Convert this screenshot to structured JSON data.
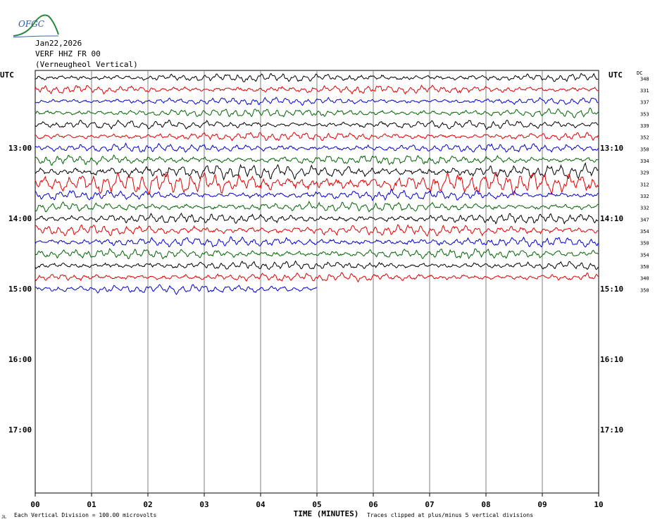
{
  "header": {
    "logo_text": "OFGC",
    "date": "Jan22,2026",
    "station": "VERF HHZ FR 00",
    "location": "(Verneugheol Vertical)"
  },
  "chart_data": {
    "type": "line",
    "title": "",
    "left_axis_label": "UTC",
    "right_axis_label": "UTC",
    "dc_label": "DC",
    "xlabel": "TIME (MINUTES)",
    "x_ticks": [
      "00",
      "01",
      "02",
      "03",
      "04",
      "05",
      "06",
      "07",
      "08",
      "09",
      "10"
    ],
    "xlim": [
      0,
      10
    ],
    "left_time_labels": [
      {
        "row": 6,
        "label": "13:00"
      },
      {
        "row": 12,
        "label": "14:00"
      },
      {
        "row": 18,
        "label": "15:00"
      },
      {
        "row": 24,
        "label": "16:00"
      },
      {
        "row": 30,
        "label": "17:00"
      }
    ],
    "right_time_labels": [
      {
        "row": 6,
        "label": "13:10"
      },
      {
        "row": 12,
        "label": "14:10"
      },
      {
        "row": 18,
        "label": "15:10"
      },
      {
        "row": 24,
        "label": "16:10"
      },
      {
        "row": 30,
        "label": "17:10"
      }
    ],
    "total_rows": 36,
    "series_colors": [
      "#000000",
      "#e00000",
      "#0000d0",
      "#006400"
    ],
    "traces": [
      {
        "dc": "348",
        "minutes": 10,
        "amplitude": 0.35
      },
      {
        "dc": "331",
        "minutes": 10,
        "amplitude": 0.35
      },
      {
        "dc": "337",
        "minutes": 10,
        "amplitude": 0.3
      },
      {
        "dc": "353",
        "minutes": 10,
        "amplitude": 0.35
      },
      {
        "dc": "339",
        "minutes": 10,
        "amplitude": 0.35
      },
      {
        "dc": "352",
        "minutes": 10,
        "amplitude": 0.35
      },
      {
        "dc": "350",
        "minutes": 10,
        "amplitude": 0.35
      },
      {
        "dc": "334",
        "minutes": 10,
        "amplitude": 0.4
      },
      {
        "dc": "329",
        "minutes": 10,
        "amplitude": 0.6
      },
      {
        "dc": "312",
        "minutes": 10,
        "amplitude": 0.9
      },
      {
        "dc": "332",
        "minutes": 10,
        "amplitude": 0.4
      },
      {
        "dc": "332",
        "minutes": 10,
        "amplitude": 0.4
      },
      {
        "dc": "347",
        "minutes": 10,
        "amplitude": 0.4
      },
      {
        "dc": "354",
        "minutes": 10,
        "amplitude": 0.45
      },
      {
        "dc": "350",
        "minutes": 10,
        "amplitude": 0.4
      },
      {
        "dc": "354",
        "minutes": 10,
        "amplitude": 0.4
      },
      {
        "dc": "350",
        "minutes": 10,
        "amplitude": 0.35
      },
      {
        "dc": "340",
        "minutes": 10,
        "amplitude": 0.35
      },
      {
        "dc": "350",
        "minutes": 5,
        "amplitude": 0.35
      }
    ],
    "footer_left": "Each Vertical Division =  100.00 microvolts",
    "footer_right": "Traces clipped at plus/minus 5 vertical divisions",
    "footer_mark": "JL"
  }
}
